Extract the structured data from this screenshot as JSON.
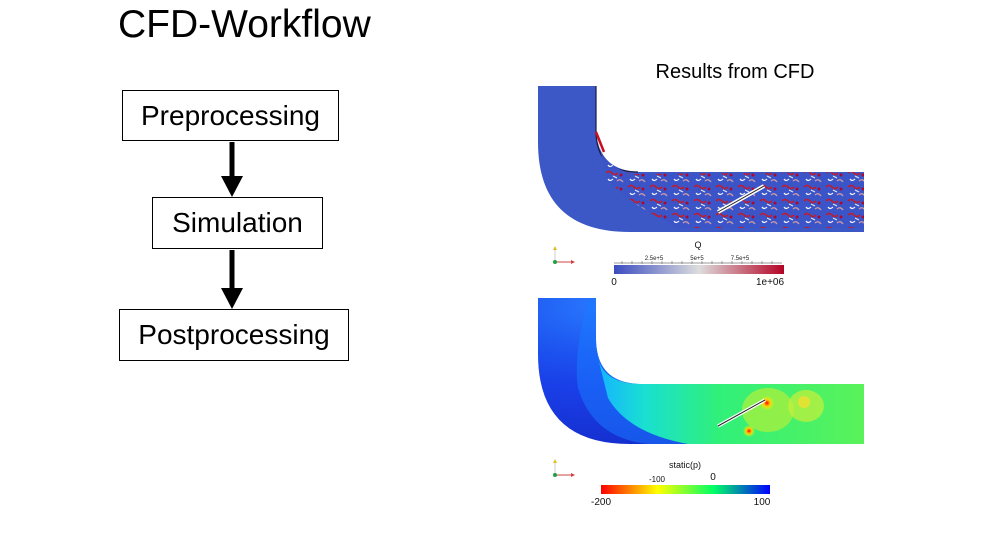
{
  "title": "CFD-Workflow",
  "workflow": {
    "steps": [
      {
        "label": "Preprocessing"
      },
      {
        "label": "Simulation"
      },
      {
        "label": "Postprocessing"
      }
    ]
  },
  "results": {
    "title": "Results from CFD",
    "plot_q": {
      "colorbar_title": "Q",
      "min_label": "0",
      "max_label": "1e+06",
      "mid_label": "5e+5",
      "minor_labels": [
        "2.5e+5",
        "7.5e+5"
      ],
      "colors": [
        "#3b4cc0",
        "#dddddd",
        "#b40426"
      ]
    },
    "plot_p": {
      "colorbar_title": "static(p)",
      "min_label": "-200",
      "max_label": "100",
      "tick_labels": [
        "-100",
        "0"
      ],
      "colors": [
        "#ff0000",
        "#ffff00",
        "#00ff66",
        "#0000ff"
      ]
    }
  }
}
